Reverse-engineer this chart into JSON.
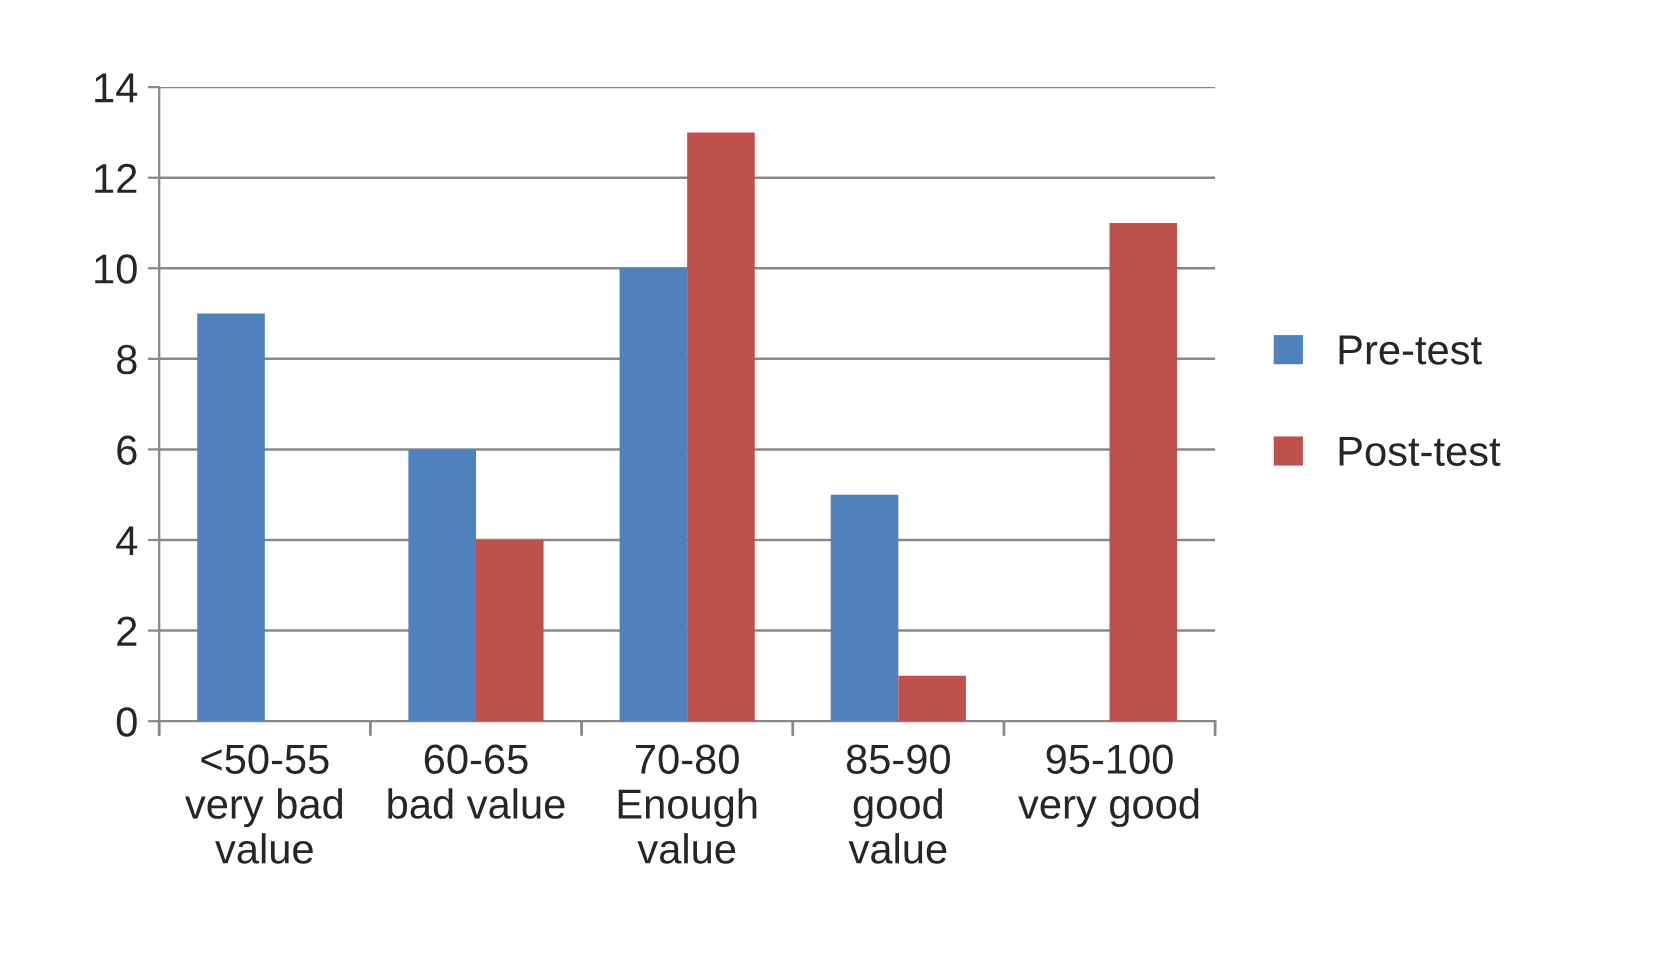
{
  "chart_data": {
    "type": "bar",
    "categories": [
      "<50-55\nvery bad\nvalue",
      "60-65\nbad value",
      "70-80\nEnough\nvalue",
      "85-90\ngood\nvalue",
      "95-100\nvery good"
    ],
    "series": [
      {
        "name": "Pre-test",
        "color": "#4f81bd",
        "values": [
          9,
          6,
          10,
          5,
          null
        ]
      },
      {
        "name": "Post-test",
        "color": "#c0504d",
        "values": [
          null,
          4,
          13,
          1,
          11
        ]
      }
    ],
    "ylim": [
      0,
      14
    ],
    "yticks": [
      0,
      2,
      4,
      6,
      8,
      10,
      12,
      14
    ],
    "grid": "y",
    "legend": "right"
  }
}
